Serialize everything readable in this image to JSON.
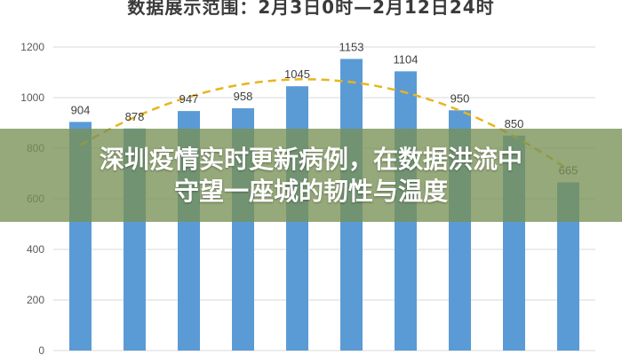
{
  "chart_data": {
    "type": "bar",
    "title": "数据展示范围：2月3日0时—2月12日24时",
    "categories": [
      "",
      "",
      "",
      "",
      "",
      "",
      "",
      "",
      "",
      ""
    ],
    "values": [
      904,
      878,
      947,
      958,
      1045,
      1153,
      1104,
      950,
      850,
      665
    ],
    "data_labels": [
      "904",
      "878",
      "947",
      "958",
      "1045",
      "1153",
      "1104",
      "950",
      "850",
      "665"
    ],
    "trendline": true,
    "ylim": [
      0,
      1200
    ],
    "yticks": [
      "0",
      "200",
      "400",
      "600",
      "800",
      "1000",
      "1200"
    ],
    "grid": true,
    "xlabel": "",
    "ylabel": "",
    "colors": {
      "bar": "#5b9bd5",
      "trend": "#e8b51c",
      "grid": "#d9d9d9"
    }
  },
  "overlay": {
    "line1": "深圳疫情实时更新病例，在数据洪流中",
    "line2": "守望一座城的韧性与温度"
  }
}
